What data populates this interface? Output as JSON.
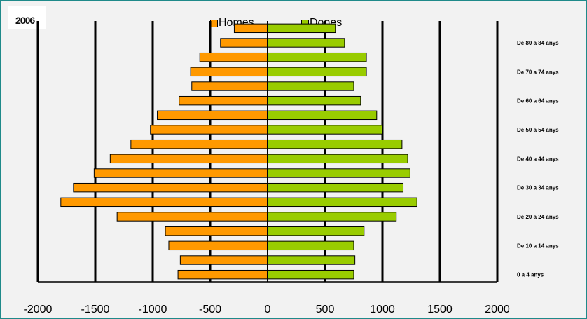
{
  "chart_data": {
    "type": "bar",
    "orientation": "horizontal",
    "year_label": "2006",
    "legend_position": "top-center",
    "grid": "vertical",
    "series": [
      {
        "name": "Homes",
        "color": "#ff9900",
        "values": [
          -780,
          -760,
          -860,
          -890,
          -1310,
          -1800,
          -1690,
          -1510,
          -1370,
          -1190,
          -1020,
          -960,
          -770,
          -660,
          -670,
          -590,
          -410,
          -290
        ]
      },
      {
        "name": "Dones",
        "color": "#99cc00",
        "values": [
          750,
          760,
          750,
          840,
          1120,
          1300,
          1180,
          1240,
          1220,
          1170,
          1000,
          950,
          810,
          750,
          860,
          860,
          670,
          590
        ]
      }
    ],
    "y_tick_labels": [
      "0 a 4 anys",
      "De 10 a 14 anys",
      "De 20 a 24 anys",
      "De 30 a 34 anys",
      "De 40 a 44 anys",
      "De 50 a 54 anys",
      "De 60 a 64 anys",
      "De 70 a 74 anys",
      "De 80 a 84 anys"
    ],
    "x_ticks": [
      -2000,
      -1500,
      -1000,
      -500,
      0,
      500,
      1000,
      1500,
      2000
    ],
    "xlim": [
      -2000,
      2000
    ]
  }
}
